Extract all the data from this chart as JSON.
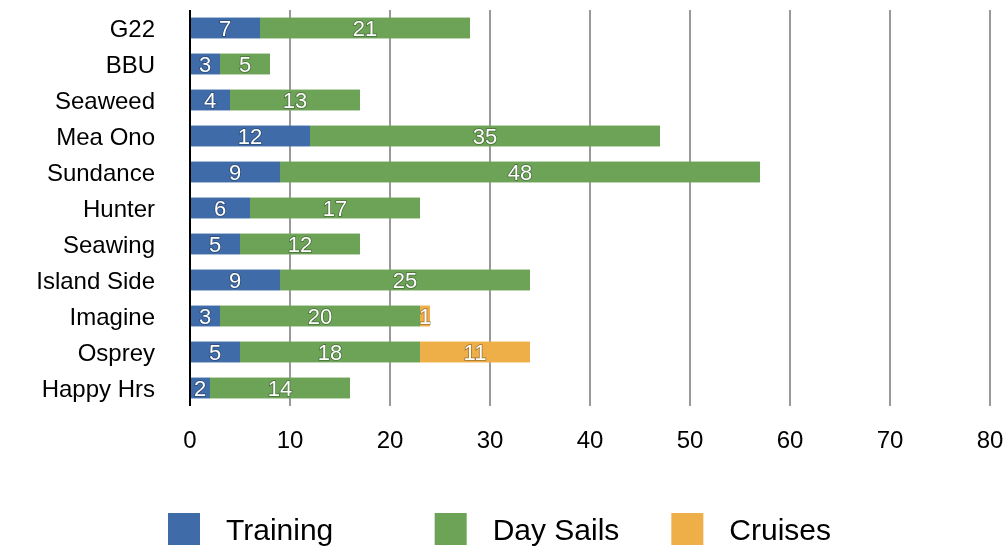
{
  "chart_data": {
    "type": "bar",
    "orientation": "horizontal",
    "stacked": true,
    "categories": [
      "G22",
      "BBU",
      "Seaweed",
      "Mea Ono",
      "Sundance",
      "Hunter",
      "Seawing",
      "Island Side",
      "Imagine",
      "Osprey",
      "Happy Hrs"
    ],
    "series": [
      {
        "name": "Training",
        "color": "#3f6ca8",
        "values": [
          7,
          3,
          4,
          12,
          9,
          6,
          5,
          9,
          3,
          5,
          2
        ]
      },
      {
        "name": "Day Sails",
        "color": "#6ca356",
        "values": [
          21,
          5,
          13,
          35,
          48,
          17,
          12,
          25,
          20,
          18,
          14
        ]
      },
      {
        "name": "Cruises",
        "color": "#eeae48",
        "values": [
          null,
          null,
          null,
          null,
          null,
          null,
          null,
          null,
          1,
          11,
          null
        ]
      }
    ],
    "xlim": [
      0,
      80
    ],
    "xticks": [
      0,
      10,
      20,
      30,
      40,
      50,
      60,
      70,
      80
    ],
    "grid": "x",
    "legend": "bottom",
    "data_labels": true
  }
}
